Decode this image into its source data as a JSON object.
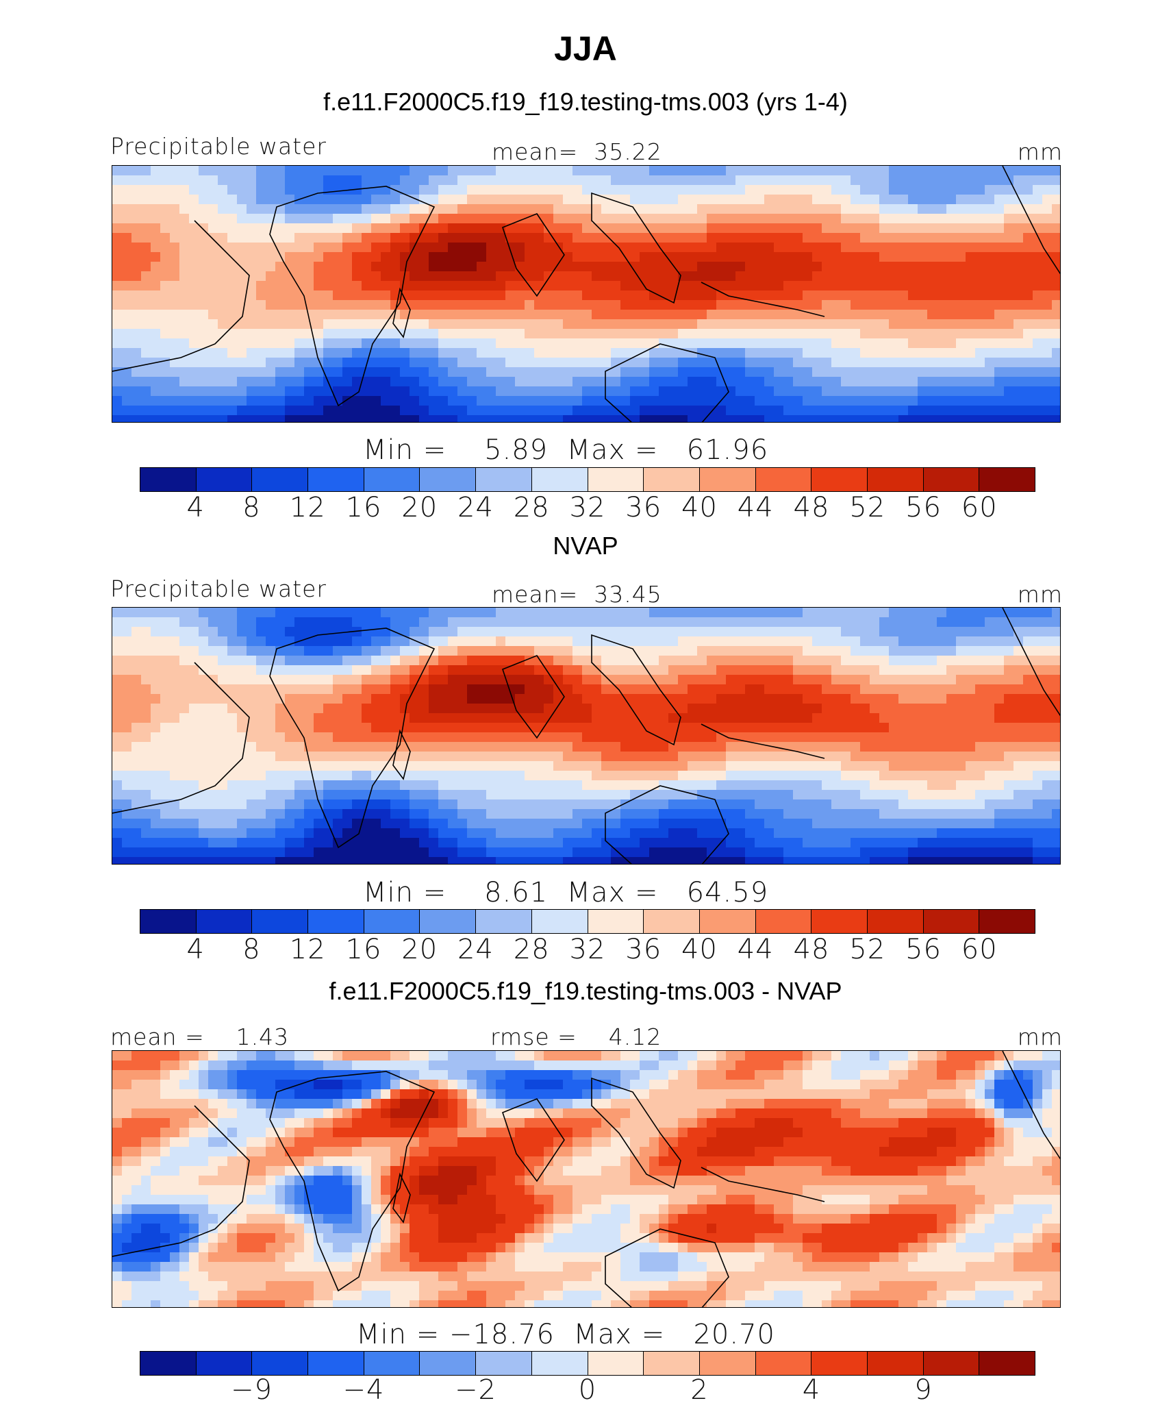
{
  "page": {
    "title": "JJA"
  },
  "colors": {
    "palette": [
      "#08148c",
      "#0a2cc4",
      "#0d47dd",
      "#1f63f0",
      "#3f7ff0",
      "#6c9cf0",
      "#a3c0f4",
      "#d3e4fa",
      "#fdeada",
      "#fcc6a8",
      "#fa9c72",
      "#f6663a",
      "#e93c14",
      "#d42a08",
      "#b81c06",
      "#8c0a04"
    ]
  },
  "panels": [
    {
      "title": "f.e11.F2000C5.f19_f19.testing-tms.003 (yrs 1-4)",
      "left_label": "Precipitable water",
      "center_label": "mean=  35.22",
      "right_label": "mm",
      "minmax": "Min =    5.89  Max =   61.96",
      "ticks": [
        "4",
        "8",
        "12",
        "16",
        "20",
        "24",
        "28",
        "32",
        "36",
        "40",
        "44",
        "48",
        "52",
        "56",
        "60"
      ],
      "pattern": "model"
    },
    {
      "title": "NVAP",
      "left_label": "Precipitable water",
      "center_label": "mean=  33.45",
      "right_label": "mm",
      "minmax": "Min =    8.61  Max =   64.59",
      "ticks": [
        "4",
        "8",
        "12",
        "16",
        "20",
        "24",
        "28",
        "32",
        "36",
        "40",
        "44",
        "48",
        "52",
        "56",
        "60"
      ],
      "pattern": "obs"
    },
    {
      "title": "f.e11.F2000C5.f19_f19.testing-tms.003 - NVAP",
      "left_label": "mean =    1.43",
      "center_label": "rmse =    4.12",
      "right_label": "mm",
      "minmax": "Min = −18.76  Max =   20.70",
      "ticks": [
        "−9",
        "−4",
        "−2",
        "0",
        "2",
        "4",
        "9"
      ],
      "pattern": "diff"
    }
  ]
}
